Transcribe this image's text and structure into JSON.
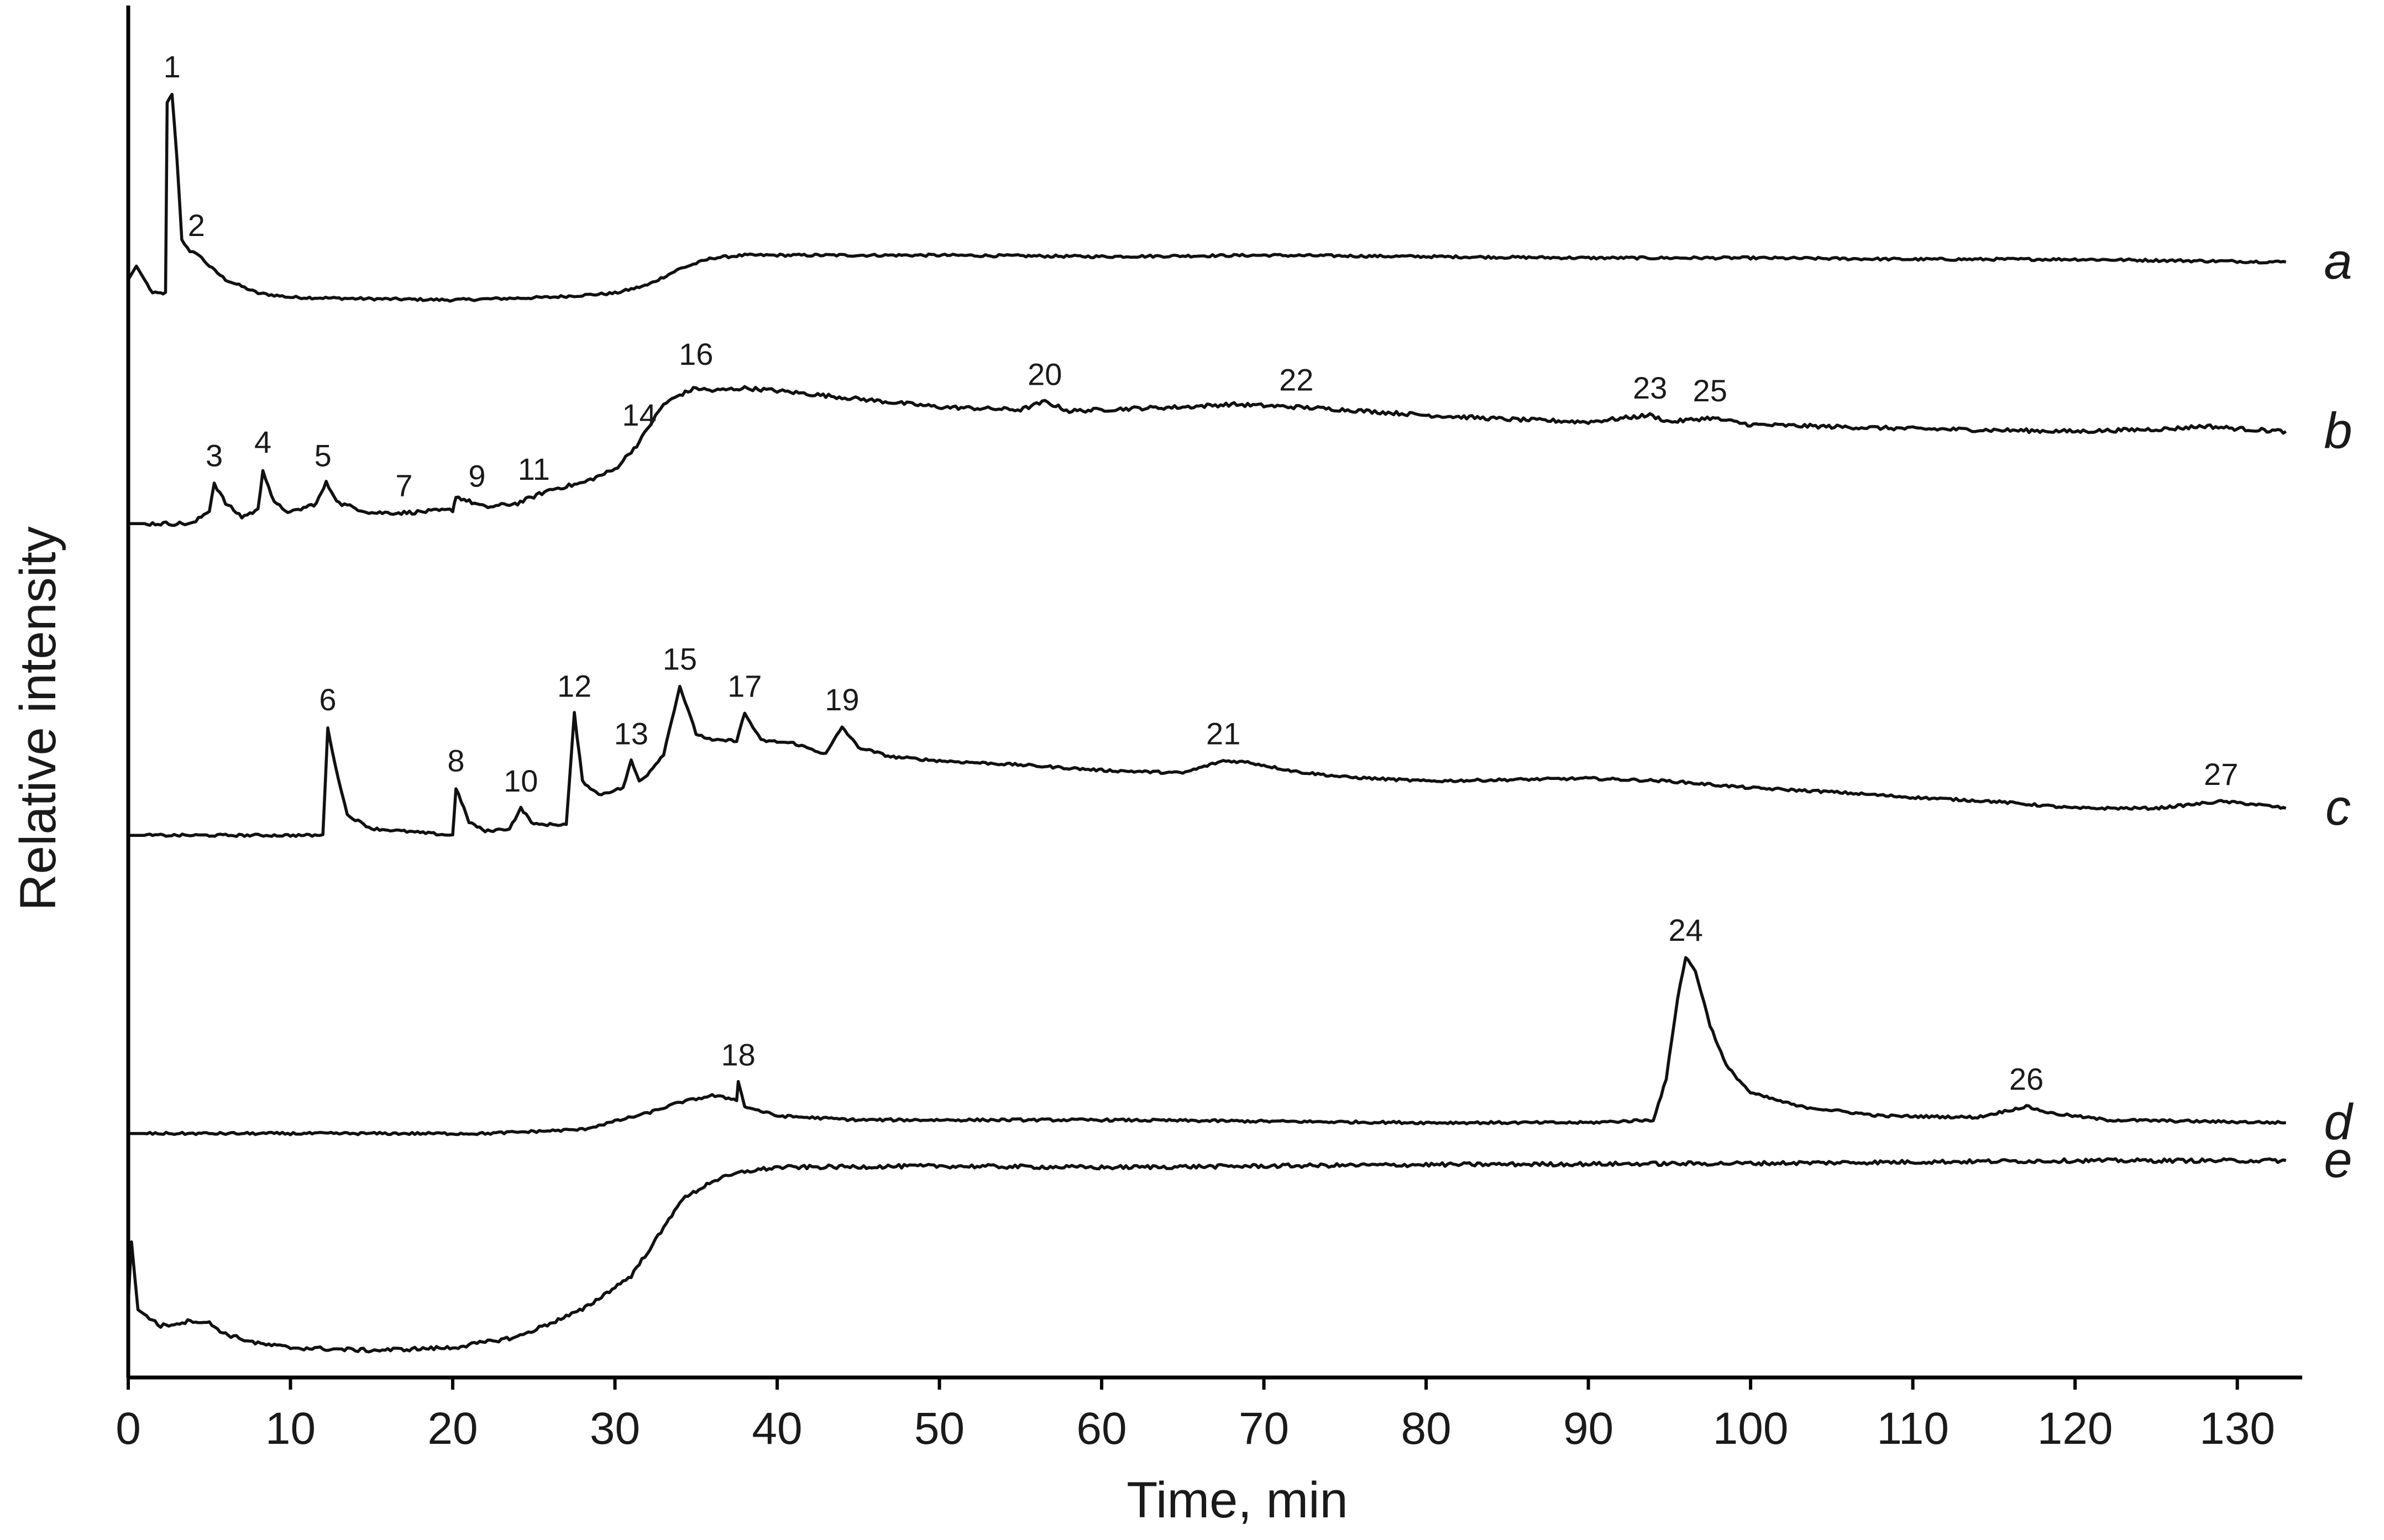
{
  "chart_data": {
    "type": "line",
    "title": "",
    "xlabel": "Time, min",
    "ylabel": "Relative intensity",
    "xlim": [
      0,
      134
    ],
    "x_ticks": [
      0,
      10,
      20,
      30,
      40,
      50,
      60,
      70,
      80,
      90,
      100,
      110,
      120,
      130
    ],
    "grid": false,
    "legend": "none",
    "y_units": "relative, traces vertically offset",
    "series": [
      {
        "name": "a",
        "baseline": 0.835,
        "points": [
          [
            0,
            0.81
          ],
          [
            0.5,
            0.82
          ],
          [
            1,
            0.81
          ],
          [
            1.5,
            0.8
          ],
          [
            2,
            0.8
          ],
          [
            2.3,
            0.8
          ],
          [
            2.4,
            0.94
          ],
          [
            2.7,
            0.947
          ],
          [
            3.0,
            0.9
          ],
          [
            3.3,
            0.84
          ],
          [
            3.8,
            0.83
          ],
          [
            4.2,
            0.83
          ],
          [
            5,
            0.82
          ],
          [
            6,
            0.81
          ],
          [
            8,
            0.8
          ],
          [
            10,
            0.797
          ],
          [
            14,
            0.796
          ],
          [
            20,
            0.795
          ],
          [
            26,
            0.797
          ],
          [
            30,
            0.8
          ],
          [
            32,
            0.806
          ],
          [
            34,
            0.818
          ],
          [
            36,
            0.826
          ],
          [
            38,
            0.828
          ],
          [
            40,
            0.828
          ],
          [
            50,
            0.828
          ],
          [
            60,
            0.827
          ],
          [
            70,
            0.828
          ],
          [
            80,
            0.827
          ],
          [
            90,
            0.826
          ],
          [
            100,
            0.826
          ],
          [
            110,
            0.825
          ],
          [
            120,
            0.825
          ],
          [
            133,
            0.823
          ]
        ],
        "peaks": [
          {
            "label": "1",
            "x": 2.7,
            "y": 0.947
          },
          {
            "label": "2",
            "x": 4.2,
            "y": 0.83
          }
        ]
      },
      {
        "name": "b",
        "points": [
          [
            0,
            0.63
          ],
          [
            4,
            0.63
          ],
          [
            5,
            0.64
          ],
          [
            5.3,
            0.66
          ],
          [
            6,
            0.645
          ],
          [
            7,
            0.635
          ],
          [
            8,
            0.64
          ],
          [
            8.3,
            0.67
          ],
          [
            9,
            0.645
          ],
          [
            10,
            0.638
          ],
          [
            11.6,
            0.645
          ],
          [
            12.2,
            0.66
          ],
          [
            13,
            0.645
          ],
          [
            15,
            0.638
          ],
          [
            17,
            0.638
          ],
          [
            20,
            0.64
          ],
          [
            20.2,
            0.65
          ],
          [
            22,
            0.642
          ],
          [
            24,
            0.645
          ],
          [
            25,
            0.65
          ],
          [
            26,
            0.655
          ],
          [
            28,
            0.66
          ],
          [
            30,
            0.67
          ],
          [
            31.5,
            0.69
          ],
          [
            32,
            0.7
          ],
          [
            33,
            0.718
          ],
          [
            34,
            0.725
          ],
          [
            35,
            0.73
          ],
          [
            36,
            0.728
          ],
          [
            38,
            0.73
          ],
          [
            40,
            0.728
          ],
          [
            45,
            0.722
          ],
          [
            50,
            0.716
          ],
          [
            55,
            0.714
          ],
          [
            56.5,
            0.72
          ],
          [
            58,
            0.713
          ],
          [
            62,
            0.715
          ],
          [
            65,
            0.716
          ],
          [
            68,
            0.718
          ],
          [
            72,
            0.716
          ],
          [
            75,
            0.714
          ],
          [
            80,
            0.71
          ],
          [
            85,
            0.707
          ],
          [
            90,
            0.705
          ],
          [
            93.8,
            0.71
          ],
          [
            95,
            0.705
          ],
          [
            97.5,
            0.708
          ],
          [
            100,
            0.703
          ],
          [
            110,
            0.7
          ],
          [
            120,
            0.698
          ],
          [
            126,
            0.7
          ],
          [
            128,
            0.702
          ],
          [
            130,
            0.7
          ],
          [
            133,
            0.698
          ]
        ],
        "peaks": [
          {
            "label": "3",
            "x": 5.3,
            "y": 0.66
          },
          {
            "label": "4",
            "x": 8.3,
            "y": 0.67
          },
          {
            "label": "5",
            "x": 12,
            "y": 0.66
          },
          {
            "label": "7",
            "x": 17,
            "y": 0.638
          },
          {
            "label": "9",
            "x": 21.5,
            "y": 0.645
          },
          {
            "label": "11",
            "x": 25,
            "y": 0.65
          },
          {
            "label": "14",
            "x": 31.5,
            "y": 0.69
          },
          {
            "label": "16",
            "x": 35,
            "y": 0.735
          },
          {
            "label": "20",
            "x": 56.5,
            "y": 0.72
          },
          {
            "label": "22",
            "x": 72,
            "y": 0.716
          },
          {
            "label": "23",
            "x": 93.8,
            "y": 0.71
          },
          {
            "label": "25",
            "x": 97.5,
            "y": 0.708
          }
        ]
      },
      {
        "name": "c",
        "points": [
          [
            0,
            0.4
          ],
          [
            12,
            0.4
          ],
          [
            12.3,
            0.48
          ],
          [
            12.6,
            0.46
          ],
          [
            13.5,
            0.415
          ],
          [
            15,
            0.405
          ],
          [
            18,
            0.402
          ],
          [
            20,
            0.4
          ],
          [
            20.2,
            0.435
          ],
          [
            21,
            0.41
          ],
          [
            22,
            0.403
          ],
          [
            23.5,
            0.405
          ],
          [
            24.2,
            0.42
          ],
          [
            25,
            0.408
          ],
          [
            27,
            0.408
          ],
          [
            27.5,
            0.49
          ],
          [
            28,
            0.44
          ],
          [
            29,
            0.43
          ],
          [
            30.5,
            0.435
          ],
          [
            31,
            0.455
          ],
          [
            31.5,
            0.44
          ],
          [
            32,
            0.445
          ],
          [
            33,
            0.46
          ],
          [
            34,
            0.51
          ],
          [
            35,
            0.475
          ],
          [
            36,
            0.47
          ],
          [
            37.5,
            0.47
          ],
          [
            38,
            0.49
          ],
          [
            39,
            0.47
          ],
          [
            41,
            0.468
          ],
          [
            43,
            0.46
          ],
          [
            44,
            0.48
          ],
          [
            45,
            0.465
          ],
          [
            47,
            0.458
          ],
          [
            50,
            0.455
          ],
          [
            55,
            0.452
          ],
          [
            60,
            0.448
          ],
          [
            65,
            0.446
          ],
          [
            67.5,
            0.455
          ],
          [
            69,
            0.454
          ],
          [
            72,
            0.447
          ],
          [
            75,
            0.443
          ],
          [
            80,
            0.44
          ],
          [
            85,
            0.441
          ],
          [
            90,
            0.442
          ],
          [
            95,
            0.44
          ],
          [
            100,
            0.435
          ],
          [
            105,
            0.432
          ],
          [
            110,
            0.428
          ],
          [
            115,
            0.425
          ],
          [
            120,
            0.42
          ],
          [
            125,
            0.42
          ],
          [
            129,
            0.425
          ],
          [
            131,
            0.423
          ],
          [
            133,
            0.42
          ]
        ],
        "peaks": [
          {
            "label": "6",
            "x": 12.3,
            "y": 0.48
          },
          {
            "label": "8",
            "x": 20.2,
            "y": 0.435
          },
          {
            "label": "10",
            "x": 24.2,
            "y": 0.42
          },
          {
            "label": "12",
            "x": 27.5,
            "y": 0.49
          },
          {
            "label": "13",
            "x": 31,
            "y": 0.455
          },
          {
            "label": "15",
            "x": 34,
            "y": 0.51
          },
          {
            "label": "17",
            "x": 38,
            "y": 0.49
          },
          {
            "label": "19",
            "x": 44,
            "y": 0.48
          },
          {
            "label": "21",
            "x": 67.5,
            "y": 0.455
          },
          {
            "label": "27",
            "x": 129,
            "y": 0.425
          }
        ]
      },
      {
        "name": "d",
        "points": [
          [
            0,
            0.18
          ],
          [
            22,
            0.18
          ],
          [
            28,
            0.183
          ],
          [
            32,
            0.195
          ],
          [
            34,
            0.203
          ],
          [
            36,
            0.208
          ],
          [
            37.5,
            0.205
          ],
          [
            37.6,
            0.218
          ],
          [
            38,
            0.2
          ],
          [
            40,
            0.193
          ],
          [
            45,
            0.19
          ],
          [
            60,
            0.19
          ],
          [
            80,
            0.188
          ],
          [
            90,
            0.188
          ],
          [
            94,
            0.19
          ],
          [
            94.8,
            0.22
          ],
          [
            95.5,
            0.28
          ],
          [
            96,
            0.31
          ],
          [
            96.6,
            0.3
          ],
          [
            97.5,
            0.26
          ],
          [
            98.5,
            0.23
          ],
          [
            100,
            0.21
          ],
          [
            103,
            0.2
          ],
          [
            108,
            0.193
          ],
          [
            114,
            0.192
          ],
          [
            117,
            0.2
          ],
          [
            118.5,
            0.195
          ],
          [
            122,
            0.19
          ],
          [
            133,
            0.188
          ]
        ],
        "peaks": [
          {
            "label": "18",
            "x": 37.6,
            "y": 0.218
          },
          {
            "label": "24",
            "x": 96,
            "y": 0.31
          },
          {
            "label": "26",
            "x": 117,
            "y": 0.2
          }
        ]
      },
      {
        "name": "e",
        "points": [
          [
            0,
            0.055
          ],
          [
            0.2,
            0.1
          ],
          [
            0.6,
            0.05
          ],
          [
            2,
            0.038
          ],
          [
            4,
            0.042
          ],
          [
            5,
            0.04
          ],
          [
            6,
            0.032
          ],
          [
            8,
            0.025
          ],
          [
            10,
            0.022
          ],
          [
            15,
            0.02
          ],
          [
            20,
            0.022
          ],
          [
            24,
            0.03
          ],
          [
            28,
            0.05
          ],
          [
            31,
            0.075
          ],
          [
            33,
            0.11
          ],
          [
            34,
            0.13
          ],
          [
            36,
            0.145
          ],
          [
            38,
            0.152
          ],
          [
            40,
            0.155
          ],
          [
            50,
            0.156
          ],
          [
            60,
            0.155
          ],
          [
            80,
            0.157
          ],
          [
            100,
            0.158
          ],
          [
            120,
            0.16
          ],
          [
            133,
            0.16
          ]
        ],
        "peaks": []
      }
    ]
  }
}
